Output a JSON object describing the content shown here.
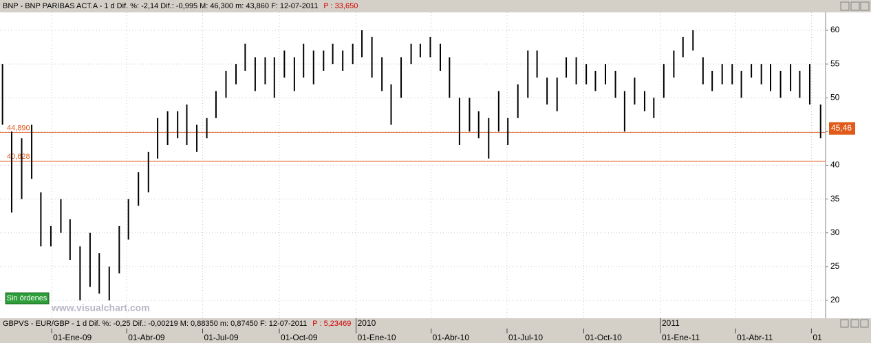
{
  "chart_data": {
    "type": "hilo",
    "header": {
      "text": "BNP - BNP PARIBAS ACT.A - 1 d Dif. %: -2,14  Dif.: -0,995  M: 46,300  m: 43,860  F: 12-07-2011",
      "price": "P : 33,650"
    },
    "lower_header": {
      "text": "GBPVS - EUR/GBP - 1 d Dif. %: -0,25  Dif.: -0,00219  M: 0,88350  m: 0,87450  F: 12-07-2011",
      "price": "P : 5,23469"
    },
    "x": [
      "2008-11-03",
      "2008-11-14",
      "2008-11-26",
      "2008-12-08",
      "2008-12-19",
      "2008-12-31",
      "2009-01-12",
      "2009-01-23",
      "2009-02-04",
      "2009-02-16",
      "2009-02-27",
      "2009-03-11",
      "2009-03-23",
      "2009-04-03",
      "2009-04-15",
      "2009-04-27",
      "2009-05-08",
      "2009-05-20",
      "2009-06-01",
      "2009-06-12",
      "2009-06-24",
      "2009-07-06",
      "2009-07-17",
      "2009-07-29",
      "2009-08-10",
      "2009-08-21",
      "2009-09-02",
      "2009-09-14",
      "2009-09-25",
      "2009-10-07",
      "2009-10-19",
      "2009-10-30",
      "2009-11-11",
      "2009-11-23",
      "2009-12-04",
      "2009-12-16",
      "2009-12-28",
      "2010-01-08",
      "2010-01-20",
      "2010-02-01",
      "2010-02-12",
      "2010-02-24",
      "2010-03-08",
      "2010-03-19",
      "2010-03-31",
      "2010-04-12",
      "2010-04-23",
      "2010-05-05",
      "2010-05-17",
      "2010-05-28",
      "2010-06-09",
      "2010-06-21",
      "2010-07-02",
      "2010-07-14",
      "2010-07-26",
      "2010-08-06",
      "2010-08-18",
      "2010-08-30",
      "2010-09-10",
      "2010-09-22",
      "2010-10-04",
      "2010-10-15",
      "2010-10-27",
      "2010-11-08",
      "2010-11-19",
      "2010-12-01",
      "2010-12-13",
      "2010-12-24",
      "2011-01-05",
      "2011-01-17",
      "2011-01-28",
      "2011-02-09",
      "2011-02-21",
      "2011-03-04",
      "2011-03-16",
      "2011-03-28",
      "2011-04-08",
      "2011-04-20",
      "2011-05-02",
      "2011-05-13",
      "2011-05-25",
      "2011-06-06",
      "2011-06-17",
      "2011-06-29",
      "2011-07-12"
    ],
    "high": [
      55,
      45,
      44,
      46,
      36,
      31,
      35,
      32,
      28,
      30,
      27,
      25,
      31,
      35,
      39,
      42,
      47,
      48,
      48,
      49,
      46,
      47,
      51,
      54,
      55,
      58,
      56,
      56,
      56,
      57,
      56,
      58,
      57,
      57,
      58,
      57,
      58,
      60,
      59,
      56,
      52,
      56,
      58,
      58,
      59,
      58,
      56,
      50,
      50,
      48,
      47,
      51,
      47,
      52,
      57,
      57,
      53,
      53,
      56,
      56,
      55,
      54,
      55,
      54,
      51,
      53,
      51,
      50,
      55,
      57,
      59,
      60,
      56,
      54,
      55,
      55,
      54,
      55,
      55,
      55,
      54,
      55,
      54,
      55,
      49
    ],
    "low": [
      46,
      33,
      35,
      38,
      28,
      28,
      30,
      26,
      20,
      22,
      21,
      20,
      24,
      29,
      34,
      36,
      41,
      43,
      44,
      43,
      42,
      44,
      47,
      50,
      52,
      54,
      51,
      52,
      50,
      53,
      51,
      53,
      52,
      54,
      55,
      54,
      55,
      56,
      53,
      51,
      46,
      50,
      55,
      56,
      56,
      54,
      50,
      43,
      45,
      44,
      41,
      45,
      43,
      47,
      50,
      53,
      49,
      48,
      53,
      52,
      52,
      51,
      52,
      50,
      45,
      49,
      48,
      47,
      50,
      53,
      56,
      57,
      52,
      51,
      52,
      52,
      50,
      53,
      52,
      51,
      50,
      51,
      50,
      49,
      44
    ],
    "color": "#000000",
    "xlim": [
      "2008-10-31",
      "2011-07-18"
    ],
    "xticks": [
      {
        "value": "2009-01-01",
        "label": "01-Ene-09"
      },
      {
        "value": "2009-04-01",
        "label": "01-Abr-09"
      },
      {
        "value": "2009-07-01",
        "label": "01-Jul-09"
      },
      {
        "value": "2009-10-01",
        "label": "01-Oct-09"
      },
      {
        "value": "2010-01-01",
        "label": "01-Ene-10"
      },
      {
        "value": "2010-04-01",
        "label": "01-Abr-10"
      },
      {
        "value": "2010-07-01",
        "label": "01-Jul-10"
      },
      {
        "value": "2010-10-01",
        "label": "01-Oct-10"
      },
      {
        "value": "2011-01-01",
        "label": "01-Ene-11"
      },
      {
        "value": "2011-04-01",
        "label": "01-Abr-11"
      },
      {
        "value": "2011-07-01",
        "label": "01"
      }
    ],
    "year_ticks": [
      {
        "value": "2010-01-01",
        "label": "2010"
      },
      {
        "value": "2011-01-01",
        "label": "2011"
      }
    ],
    "ylim": [
      17.35,
      62.65
    ],
    "yticks": [
      20,
      25,
      30,
      35,
      40,
      45,
      50,
      55,
      60
    ],
    "grid": true,
    "levels": [
      {
        "value": 44.89,
        "label": "44,890"
      },
      {
        "value": 40.628,
        "label": "40,628"
      }
    ],
    "level_color": "#e05a1a",
    "last": {
      "value": 45.46,
      "label": "45,46"
    }
  },
  "ui": {
    "orders": "Sin órdenes",
    "watermark": "www.visualchart.com"
  }
}
